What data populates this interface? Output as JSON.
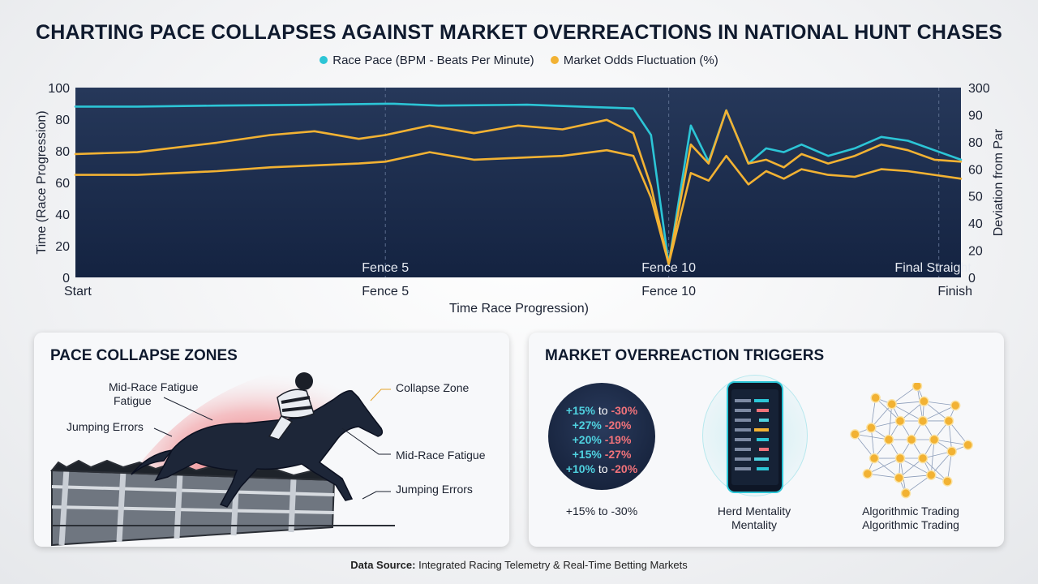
{
  "title": "CHARTING PACE COLLAPSES AGAINST MARKET OVERREACTIONS IN NATIONAL HUNT CHASES",
  "legend": {
    "pace_label": "Race Pace (BPM - Beats Per Minute)",
    "odds_label": "Market Odds Fluctuation (%)"
  },
  "chart_data": {
    "type": "line",
    "xlabel": "Time Race Progression)",
    "ylabel_left": "Time (Race Progression)",
    "ylabel_right": "Deviation from Par",
    "ylim_left": [
      0,
      100
    ],
    "ylim_right": [
      0,
      300
    ],
    "yticks_left": [
      "0",
      "20",
      "40",
      "60",
      "80",
      "80",
      "100"
    ],
    "yticks_right": [
      "0",
      "20",
      "40",
      "50",
      "60",
      "80",
      "90",
      "300"
    ],
    "xlim": [
      0,
      100
    ],
    "xticks": [
      {
        "x": 0,
        "label": "Start"
      },
      {
        "x": 35,
        "label": "Fence 5"
      },
      {
        "x": 67,
        "label": "Fence 10"
      },
      {
        "x": 100,
        "label": "Finish"
      }
    ],
    "inner_markers": [
      {
        "x": 35,
        "label": "Fence 5"
      },
      {
        "x": 67,
        "label": "Fence 10"
      },
      {
        "x": 97.5,
        "label": "Final Straight"
      }
    ],
    "colors": {
      "pace": "#2cc5d6",
      "odds": "#f2b233"
    },
    "series": [
      {
        "name": "Race Pace (BPM - Beats Per Minute)",
        "color": "#2cc5d6",
        "x": [
          0,
          7,
          16,
          27,
          35,
          36,
          41,
          51,
          57,
          63,
          65,
          67,
          69.5,
          71.5,
          73.5,
          76,
          78,
          80,
          82,
          85,
          88,
          91,
          94,
          97,
          100
        ],
        "y": [
          90,
          90,
          90.5,
          91,
          91.5,
          91.5,
          90.5,
          91,
          90,
          89,
          75,
          7,
          80,
          61,
          88,
          60,
          68,
          66,
          70,
          64,
          68,
          74,
          72,
          67,
          62
        ]
      },
      {
        "name": "Market Odds Fluctuation (%)",
        "color": "#f2b233",
        "x": [
          0,
          7,
          16,
          22,
          27,
          32,
          35,
          40,
          45,
          50,
          55,
          60,
          63,
          65,
          67,
          69.5,
          71.5,
          73.5,
          76,
          78,
          80,
          82,
          85,
          88,
          91,
          94,
          97,
          100
        ],
        "y": [
          65,
          66,
          71,
          75,
          77,
          73,
          75,
          80,
          76,
          80,
          78,
          83,
          76,
          48,
          7,
          70,
          60,
          88,
          60,
          62,
          58,
          65,
          60,
          64,
          70,
          67,
          62,
          61
        ]
      },
      {
        "name": "",
        "color": "#f2b233",
        "x": [
          0,
          7,
          16,
          22,
          27,
          32,
          35,
          40,
          45,
          50,
          55,
          60,
          63,
          65,
          67,
          69.5,
          71.5,
          73.5,
          76,
          78,
          80,
          82,
          85,
          88,
          91,
          94,
          97,
          100
        ],
        "y": [
          54,
          54,
          56,
          58,
          59,
          60,
          61,
          66,
          62,
          63,
          64,
          67,
          64,
          42,
          7,
          55,
          51,
          64,
          49,
          56,
          52,
          57,
          54,
          53,
          57,
          56,
          54,
          52
        ]
      }
    ]
  },
  "pace_panel": {
    "title": "PACE COLLAPSE ZONES",
    "labels": {
      "mid_fatigue_left_1": "Mid-Race Fatigue",
      "mid_fatigue_left_2": "Fatigue",
      "jumping_left": "Jumping Errors",
      "collapse_zone": "Collapse Zone",
      "mid_fatigue_right": "Mid-Race Fatigue",
      "jumping_right": "Jumping Errors"
    }
  },
  "market_panel": {
    "title": "MARKET OVERREACTION TRIGGERS",
    "odds_rows": [
      {
        "a": "+15%",
        "sep": "to",
        "b": "-30%"
      },
      {
        "a": "+27%",
        "sep": "",
        "b": "-20%"
      },
      {
        "a": "+20%",
        "sep": "",
        "b": "-19%"
      },
      {
        "a": "+15%",
        "sep": "",
        "b": "-27%"
      },
      {
        "a": "+10%",
        "sep": "to",
        "b": "-20%"
      }
    ],
    "captions": {
      "odds": "+15% to -30%",
      "herd_1": "Herd Mentality",
      "herd_2": "Mentality",
      "algo_1": "Algorithmic Trading",
      "algo_2": "Algorithmic Trading"
    }
  },
  "footer": {
    "label": "Data Source:",
    "text": " Integrated Racing Telemetry & Real-Time Betting Markets"
  }
}
